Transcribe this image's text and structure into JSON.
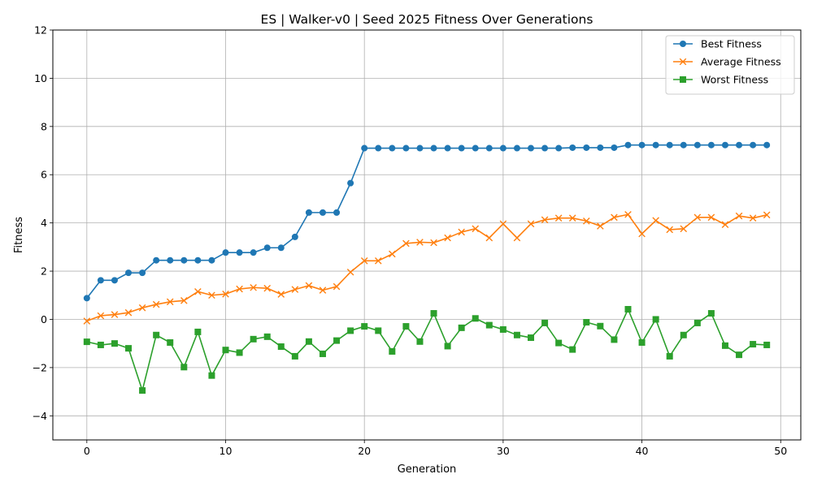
{
  "chart_data": {
    "type": "line",
    "title": "ES | Walker-v0 | Seed 2025 Fitness Over Generations",
    "xlabel": "Generation",
    "ylabel": "Fitness",
    "xlim": [
      -2.45,
      51.45
    ],
    "ylim": [
      -5,
      12
    ],
    "xticks": [
      0,
      10,
      20,
      30,
      40,
      50
    ],
    "yticks": [
      -4,
      -2,
      0,
      2,
      4,
      6,
      8,
      10,
      12
    ],
    "grid": true,
    "legend_position": "top-right",
    "x": [
      0,
      1,
      2,
      3,
      4,
      5,
      6,
      7,
      8,
      9,
      10,
      11,
      12,
      13,
      14,
      15,
      16,
      17,
      18,
      19,
      20,
      21,
      22,
      23,
      24,
      25,
      26,
      27,
      28,
      29,
      30,
      31,
      32,
      33,
      34,
      35,
      36,
      37,
      38,
      39,
      40,
      41,
      42,
      43,
      44,
      45,
      46,
      47,
      48,
      49
    ],
    "series": [
      {
        "name": "Best Fitness",
        "color": "#1f77b4",
        "marker": "circle",
        "values": [
          0.88,
          1.62,
          1.62,
          1.93,
          1.93,
          2.45,
          2.45,
          2.45,
          2.45,
          2.45,
          2.77,
          2.77,
          2.77,
          2.97,
          2.97,
          3.42,
          4.43,
          4.43,
          4.43,
          5.65,
          7.1,
          7.1,
          7.1,
          7.1,
          7.1,
          7.1,
          7.1,
          7.1,
          7.1,
          7.1,
          7.1,
          7.1,
          7.1,
          7.1,
          7.1,
          7.12,
          7.12,
          7.12,
          7.12,
          7.23,
          7.23,
          7.23,
          7.23,
          7.23,
          7.23,
          7.23,
          7.23,
          7.23,
          7.23,
          7.23
        ]
      },
      {
        "name": "Average Fitness",
        "color": "#ff7f0e",
        "marker": "x",
        "values": [
          -0.07,
          0.15,
          0.2,
          0.28,
          0.48,
          0.62,
          0.73,
          0.78,
          1.15,
          1.0,
          1.05,
          1.26,
          1.32,
          1.29,
          1.04,
          1.24,
          1.4,
          1.21,
          1.36,
          1.96,
          2.43,
          2.43,
          2.71,
          3.15,
          3.2,
          3.18,
          3.38,
          3.62,
          3.76,
          3.38,
          3.96,
          3.38,
          3.96,
          4.13,
          4.2,
          4.2,
          4.08,
          3.87,
          4.23,
          4.35,
          3.55,
          4.1,
          3.72,
          3.76,
          4.23,
          4.23,
          3.93,
          4.29,
          4.2,
          4.33
        ]
      },
      {
        "name": "Worst Fitness",
        "color": "#2ca02c",
        "marker": "square",
        "values": [
          -0.93,
          -1.06,
          -1.0,
          -1.2,
          -2.95,
          -0.65,
          -0.96,
          -1.98,
          -0.52,
          -2.33,
          -1.27,
          -1.38,
          -0.82,
          -0.72,
          -1.13,
          -1.53,
          -0.92,
          -1.43,
          -0.88,
          -0.47,
          -0.29,
          -0.47,
          -1.33,
          -0.29,
          -0.92,
          0.25,
          -1.11,
          -0.35,
          0.04,
          -0.24,
          -0.42,
          -0.65,
          -0.76,
          -0.15,
          -0.98,
          -1.25,
          -0.12,
          -0.28,
          -0.84,
          0.42,
          -0.96,
          0.0,
          -1.53,
          -0.65,
          -0.15,
          0.25,
          -1.09,
          -1.47,
          -1.03,
          -1.06
        ]
      }
    ]
  }
}
